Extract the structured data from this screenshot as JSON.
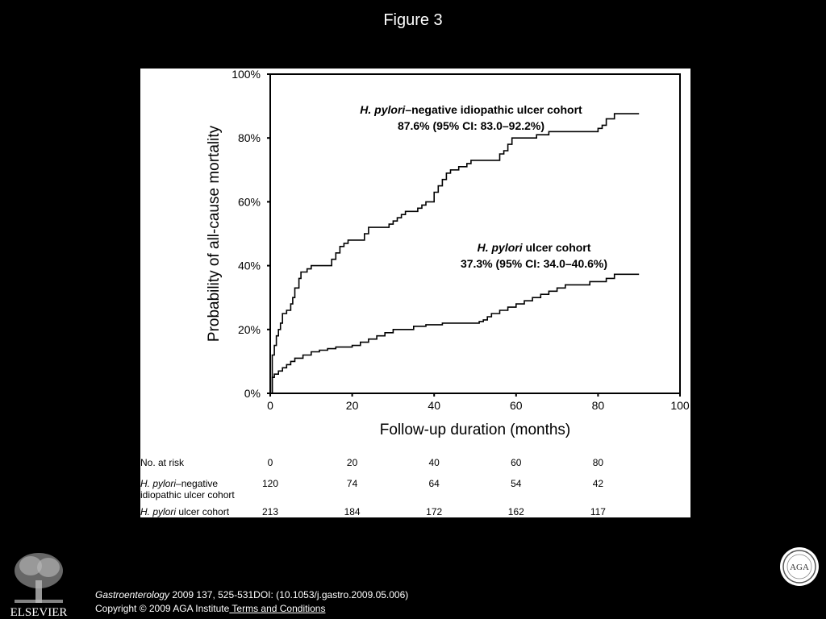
{
  "slide_title": "Figure 3",
  "chart_data": {
    "type": "line",
    "xlabel": "Follow-up duration (months)",
    "ylabel": "Probability of all-cause mortality",
    "xlim": [
      0,
      100
    ],
    "ylim": [
      0,
      100
    ],
    "xticks": [
      "0",
      "20",
      "40",
      "60",
      "80",
      "100"
    ],
    "yticks": [
      "0%",
      "20%",
      "40%",
      "60%",
      "80%",
      "100%"
    ],
    "grid": false,
    "series": [
      {
        "name": "H. pylori–negative idiopathic ulcer cohort",
        "annotation_line1_italic": "H. pylori",
        "annotation_line1_rest": "–negative idiopathic ulcer cohort",
        "annotation_line2": "87.6% (95% CI: 83.0–92.2%)",
        "x": [
          0,
          0.5,
          1,
          1.5,
          2,
          2.5,
          3,
          3.5,
          4,
          5,
          5.5,
          6,
          7,
          7.5,
          8,
          9,
          10,
          12,
          14,
          15,
          16,
          17,
          18,
          19,
          20,
          22,
          23,
          24,
          28,
          29,
          30,
          31,
          32,
          33,
          35,
          36,
          37,
          38,
          40,
          41,
          42,
          43,
          44,
          45,
          46,
          48,
          49,
          50,
          52,
          56,
          57,
          58,
          59,
          60,
          62,
          64,
          65,
          68,
          71,
          72,
          78,
          80,
          81,
          82,
          84,
          86,
          90
        ],
        "y": [
          0,
          12,
          15,
          18,
          20,
          22,
          25,
          25,
          26,
          28,
          30,
          33,
          36,
          38,
          38,
          39,
          40,
          40,
          40,
          42,
          44,
          46,
          47,
          48,
          48,
          48,
          50,
          52,
          52,
          53,
          54,
          55,
          56,
          57,
          57,
          58,
          59,
          60,
          63,
          65,
          67,
          69,
          70,
          70,
          71,
          72,
          73,
          73,
          73,
          75,
          76,
          78,
          80,
          80,
          80,
          80,
          81,
          82,
          82,
          82,
          82,
          83,
          84,
          86,
          87.6,
          87.6,
          87.6
        ]
      },
      {
        "name": "H. pylori ulcer cohort",
        "annotation_line1_italic": "H. pylori",
        "annotation_line1_rest": " ulcer cohort",
        "annotation_line2": "37.3% (95% CI: 34.0–40.6%)",
        "x": [
          0,
          0.5,
          1,
          2,
          3,
          4,
          5,
          6,
          8,
          10,
          12,
          14,
          16,
          20,
          22,
          24,
          26,
          28,
          30,
          32,
          35,
          38,
          40,
          42,
          45,
          50,
          51,
          52,
          53,
          54,
          56,
          58,
          60,
          62,
          64,
          66,
          68,
          70,
          72,
          74,
          76,
          78,
          80,
          82,
          84,
          86,
          88,
          90
        ],
        "y": [
          0,
          5,
          6,
          7,
          8,
          9,
          10,
          11,
          12,
          13,
          13.5,
          14,
          14.5,
          15,
          16,
          17,
          18,
          19,
          20,
          20,
          21,
          21.5,
          21.5,
          22,
          22,
          22,
          22.5,
          23,
          24,
          25,
          26,
          27,
          28,
          29,
          30,
          31,
          32,
          33,
          34,
          34,
          34,
          35,
          35,
          36,
          37.3,
          37.3,
          37.3,
          37.3
        ]
      }
    ]
  },
  "risk_table": {
    "header": "No. at risk",
    "times": [
      "0",
      "20",
      "40",
      "60",
      "80"
    ],
    "row1_label_italic": "H. pylori",
    "row1_label_rest": "–negative",
    "row1_label_line2": "idiopathic ulcer cohort",
    "row1_values": [
      "120",
      "74",
      "64",
      "54",
      "42"
    ],
    "row2_label_italic": "H. pylori",
    "row2_label_rest": " ulcer cohort",
    "row2_values": [
      "213",
      "184",
      "172",
      "162",
      "117"
    ]
  },
  "footer": {
    "journal": "Gastroenterology",
    "citation": " 2009 137, 525-531DOI: (10.1053/j.gastro.2009.05.006)",
    "copyright": "Copyright © 2009 AGA Institute",
    "link": " Terms and Conditions"
  },
  "logos": {
    "publisher": "ELSEVIER",
    "seal": "AGA"
  }
}
